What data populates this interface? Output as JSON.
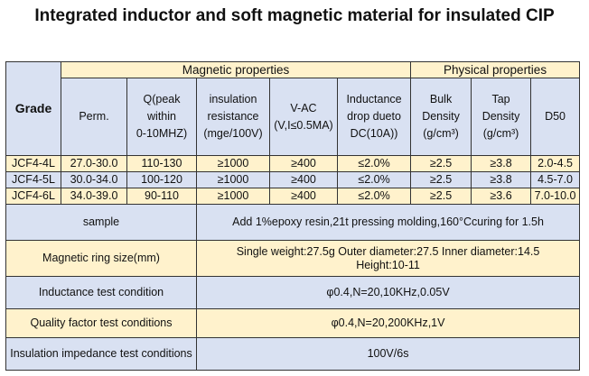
{
  "title": "Integrated inductor and soft magnetic material for insulated CIP",
  "groups": {
    "grade": "Grade",
    "magnetic": "Magnetic properties",
    "physical": "Physical properties"
  },
  "columns": [
    [
      "Perm."
    ],
    [
      "Q(peak",
      "within",
      "0-10MHZ)"
    ],
    [
      "insulation",
      "resistance",
      "(mge/100V)"
    ],
    [
      "V-AC",
      "(V,I≤0.5MA)"
    ],
    [
      "Inductance",
      "drop dueto",
      "DC(10A))"
    ],
    [
      "Bulk",
      "Density",
      "(g/cm³)"
    ],
    [
      "Tap",
      "Density",
      "(g/cm³)"
    ],
    [
      "D50"
    ]
  ],
  "rows": [
    [
      "JCF4-4L",
      "27.0-30.0",
      "110-130",
      "≥1000",
      "≥400",
      "≤2.0%",
      "≥2.5",
      "≥3.8",
      "2.0-4.5"
    ],
    [
      "JCF4-5L",
      "30.0-34.0",
      "100-120",
      "≥1000",
      "≥400",
      "≤2.0%",
      "≥2.5",
      "≥3.8",
      "4.5-7.0"
    ],
    [
      "JCF4-6L",
      "34.0-39.0",
      "90-110",
      "≥1000",
      "≥400",
      "≤2.0%",
      "≥2.5",
      "≥3.6",
      "7.0-10.0"
    ]
  ],
  "conditions": [
    {
      "label": "sample",
      "value": [
        "Add 1%epoxy resin,21t pressing molding,160°Ccuring for 1.5h"
      ]
    },
    {
      "label": "Magnetic ring size(mm)",
      "value": [
        "Single weight:27.5g Outer diameter:27.5 Inner diameter:14.5",
        "Height:10-11"
      ]
    },
    {
      "label": "Inductance test condition",
      "value": [
        "φ0.4,N=20,10KHz,0.05V"
      ]
    },
    {
      "label": "Quality factor test conditions",
      "value": [
        "φ0.4,N=20,200KHz,1V"
      ]
    },
    {
      "label": "Insulation impedance test conditions",
      "value": [
        "100V/6s"
      ]
    }
  ]
}
